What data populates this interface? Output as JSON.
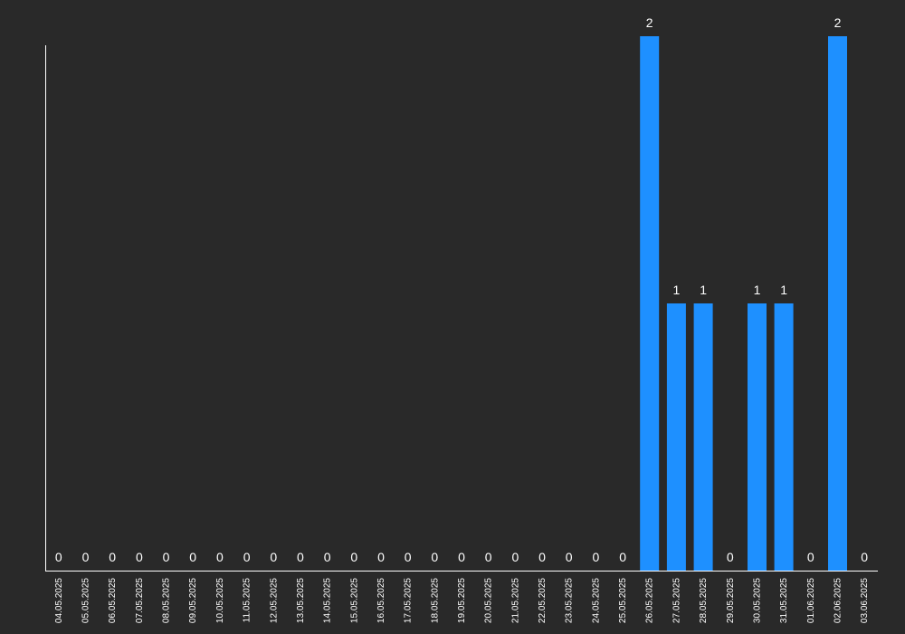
{
  "colors": {
    "background": "#292929",
    "bar": "#1e90ff",
    "axis": "#ffffff",
    "text": "#ffffff"
  },
  "chart_data": {
    "type": "bar",
    "categories": [
      "04.05.2025",
      "05.05.2025",
      "06.05.2025",
      "07.05.2025",
      "08.05.2025",
      "09.05.2025",
      "10.05.2025",
      "11.05.2025",
      "12.05.2025",
      "13.05.2025",
      "14.05.2025",
      "15.05.2025",
      "16.05.2025",
      "17.05.2025",
      "18.05.2025",
      "19.05.2025",
      "20.05.2025",
      "21.05.2025",
      "22.05.2025",
      "23.05.2025",
      "24.05.2025",
      "25.05.2025",
      "26.05.2025",
      "27.05.2025",
      "28.05.2025",
      "29.05.2025",
      "30.05.2025",
      "31.05.2025",
      "01.06.2025",
      "02.06.2025",
      "03.06.2025"
    ],
    "values": [
      0,
      0,
      0,
      0,
      0,
      0,
      0,
      0,
      0,
      0,
      0,
      0,
      0,
      0,
      0,
      0,
      0,
      0,
      0,
      0,
      0,
      0,
      2,
      1,
      1,
      0,
      1,
      1,
      0,
      2,
      0
    ],
    "title": "",
    "xlabel": "",
    "ylabel": "",
    "ylim": [
      0,
      2
    ],
    "grid": false,
    "legend": "none",
    "data_labels": true
  }
}
